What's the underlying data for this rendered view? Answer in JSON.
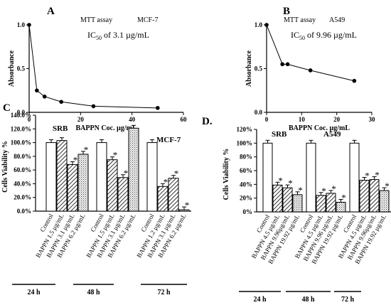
{
  "chart_data": [
    {
      "panel": "A",
      "type": "line",
      "assay": "MTT assay",
      "cell_line": "MCF-7",
      "ic50_label": "IC",
      "ic50_sub": "50",
      "ic50_value": " of 3.1 µg/mL",
      "ylabel": "Absorbance",
      "xlabel": "BAPPN Coc. µg/mL",
      "xlim": [
        0,
        60
      ],
      "ylim": [
        0,
        1.0
      ],
      "xticks": [
        "0",
        "20",
        "40",
        "60"
      ],
      "yticks": [
        "0.0",
        "0.5",
        "1.0"
      ],
      "x": [
        0,
        3,
        6,
        12.5,
        25,
        50
      ],
      "y": [
        1.0,
        0.25,
        0.18,
        0.12,
        0.07,
        0.05
      ]
    },
    {
      "panel": "B",
      "type": "line",
      "assay": "MTT assay",
      "cell_line": "A549",
      "ic50_label": "IC",
      "ic50_sub": "50",
      "ic50_value": " of 9.96  µg/mL",
      "ylabel": "Absorbance",
      "xlabel": "BAPPN Coc. µg/mL",
      "xlim": [
        0,
        30
      ],
      "ylim": [
        0,
        1.0
      ],
      "xticks": [
        "0",
        "10",
        "20",
        "30"
      ],
      "yticks": [
        "0.0",
        "0.5",
        "1.0"
      ],
      "x": [
        0,
        4.5,
        6,
        12.5,
        25
      ],
      "y": [
        1.0,
        0.55,
        0.55,
        0.48,
        0.36
      ]
    },
    {
      "panel": "C",
      "type": "bar",
      "assay": "SRB",
      "cell_line": "MCF-7",
      "ylabel": "Cells Viability %",
      "ylim": [
        0,
        140
      ],
      "yticks": [
        "0.0%",
        "20.0%",
        "40.0%",
        "60.0%",
        "80.0%",
        "100.0%",
        "120.0%",
        "140.0%"
      ],
      "groups": [
        {
          "time": "24 h",
          "bars": [
            {
              "label": "Control",
              "value": 100,
              "pattern": "white",
              "star": false
            },
            {
              "label": "BAPPN 1.5  µg/mL",
              "value": 103,
              "pattern": "hatch",
              "star": false
            },
            {
              "label": "BAPPN 3.1  µg/mL",
              "value": 68,
              "pattern": "hatch",
              "star": true
            },
            {
              "label": "BAPPN 6.2  µg/mL",
              "value": 83,
              "pattern": "dots",
              "star": true
            }
          ]
        },
        {
          "time": "48 h",
          "bars": [
            {
              "label": "Control",
              "value": 100,
              "pattern": "white",
              "star": false
            },
            {
              "label": "BAPPN 1.5  µg/mL",
              "value": 75,
              "pattern": "hatch",
              "star": true
            },
            {
              "label": "BAPPN 3.1  µg/mL",
              "value": 49,
              "pattern": "hatch",
              "star": true
            },
            {
              "label": "BAPPN 6.2  µg/mL",
              "value": 121,
              "pattern": "dots",
              "star": false
            }
          ]
        },
        {
          "time": "72 h",
          "bars": [
            {
              "label": "Control",
              "value": 100,
              "pattern": "white",
              "star": false
            },
            {
              "label": "BAPPN 1.2  µg/mL",
              "value": 36,
              "pattern": "hatch",
              "star": true
            },
            {
              "label": "BAPPN 3.1  µg/mL",
              "value": 48,
              "pattern": "hatch",
              "star": true
            },
            {
              "label": "BAPPN 6.2  µg/mL",
              "value": 2,
              "pattern": "dots",
              "star": true
            }
          ]
        }
      ]
    },
    {
      "panel": "D.",
      "type": "bar",
      "assay": "SRB",
      "cell_line": "A549",
      "ylabel": "Cells Viability %",
      "ylim": [
        0,
        120
      ],
      "yticks": [
        "0%",
        "20%",
        "40%",
        "60%",
        "80%",
        "100%",
        "120%"
      ],
      "groups": [
        {
          "time": "24 h",
          "bars": [
            {
              "label": "Control",
              "value": 100,
              "pattern": "white",
              "star": false
            },
            {
              "label": "BAPPN 4.5 µg/mL",
              "value": 39,
              "pattern": "hatch",
              "star": true
            },
            {
              "label": "BAPPN 9.96µg/mL",
              "value": 35,
              "pattern": "hatch",
              "star": true
            },
            {
              "label": "BAPPN 19.92 µg/mL",
              "value": 25,
              "pattern": "dots",
              "star": true
            }
          ]
        },
        {
          "time": "48 h",
          "bars": [
            {
              "label": "Control",
              "value": 100,
              "pattern": "white",
              "star": false
            },
            {
              "label": "BAPPN 4.5 µg/mL",
              "value": 24,
              "pattern": "hatch",
              "star": true
            },
            {
              "label": "BAPPN 9.96 µg/mL",
              "value": 27,
              "pattern": "hatch",
              "star": true
            },
            {
              "label": "BAPPN 19.92 µg/mL",
              "value": 14,
              "pattern": "dots",
              "star": true
            }
          ]
        },
        {
          "time": "72 h",
          "bars": [
            {
              "label": "Control",
              "value": 100,
              "pattern": "white",
              "star": false
            },
            {
              "label": "BAPPN 4.5 µg/mL",
              "value": 46,
              "pattern": "hatch",
              "star": true
            },
            {
              "label": "BAPPN 9.96µg/mL",
              "value": 47,
              "pattern": "hatch",
              "star": true
            },
            {
              "label": "BAPPN 19.92 µg/mL",
              "value": 31,
              "pattern": "dots",
              "star": true
            }
          ]
        }
      ]
    }
  ]
}
